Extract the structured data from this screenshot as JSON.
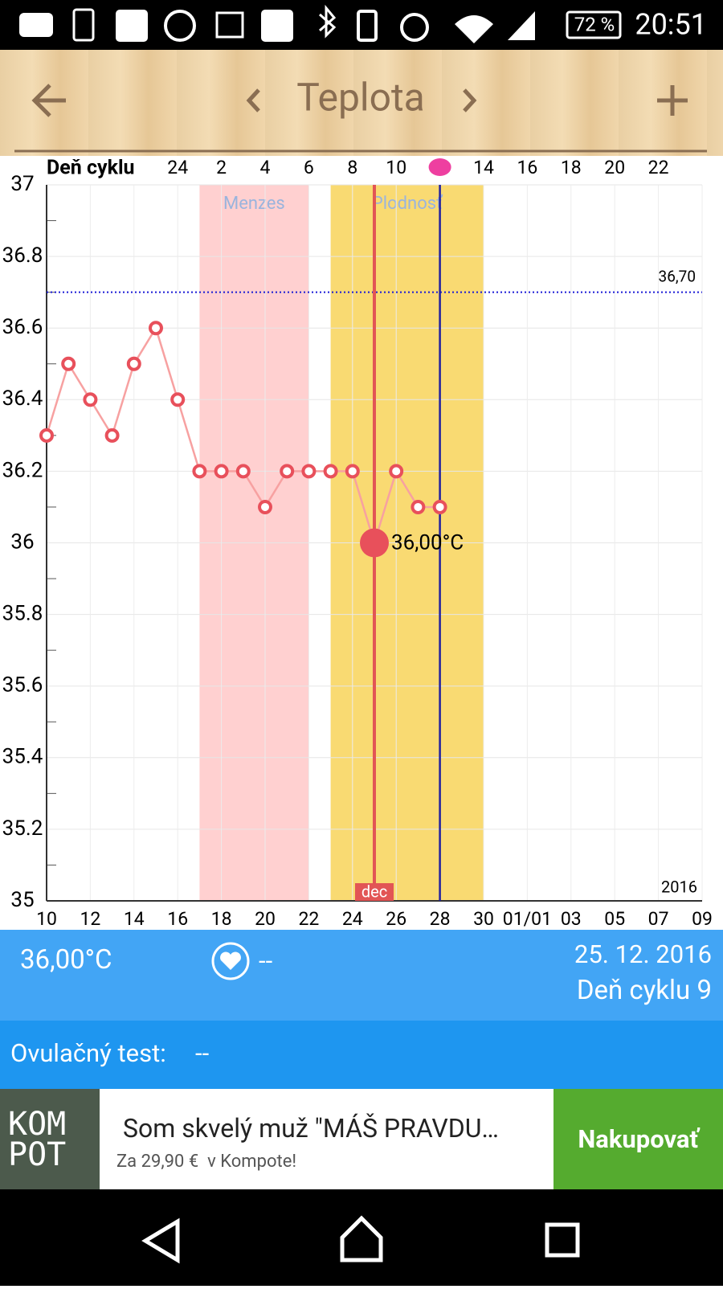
{
  "status_bar": {
    "battery": "72 %",
    "time": "20:51"
  },
  "header": {
    "title": "Teplota"
  },
  "chart_data": {
    "type": "line",
    "cycle_axis_label": "Deň cyklu",
    "cycle_days": [
      null,
      null,
      null,
      null,
      null,
      null,
      24,
      null,
      2,
      null,
      4,
      null,
      6,
      null,
      8,
      null,
      10,
      null,
      null,
      null,
      14,
      null,
      16,
      null,
      18,
      null,
      20,
      null,
      22,
      null,
      null
    ],
    "categories": [
      "10",
      null,
      "12",
      null,
      "14",
      null,
      "16",
      null,
      "18",
      null,
      "20",
      null,
      "22",
      null,
      "24",
      null,
      "26",
      null,
      "28",
      null,
      "30",
      null,
      "01/01",
      null,
      "03",
      null,
      "05",
      null,
      "07",
      null,
      "09"
    ],
    "series": [
      {
        "color": "#e8505b",
        "values": [
          36.3,
          36.5,
          36.4,
          36.3,
          36.5,
          36.6,
          36.4,
          36.2,
          36.2,
          36.2,
          36.1,
          36.2,
          36.2,
          36.2,
          36.2,
          36.0,
          36.2,
          36.1,
          36.1,
          null,
          null,
          null,
          null,
          null,
          null,
          null,
          null,
          null,
          null,
          null,
          null
        ]
      }
    ],
    "ylim": [
      35,
      37
    ],
    "yticks": [
      35,
      35.2,
      35.4,
      35.6,
      35.8,
      36,
      36.2,
      36.4,
      36.6,
      36.8,
      37
    ],
    "grid": true,
    "bands": [
      {
        "label": "Menzes",
        "color": "#ffd0d0"
      },
      {
        "label": "Plodnosť",
        "color": "#f9da72"
      }
    ],
    "reference_line": {
      "value": 36.7,
      "label": "36,70"
    },
    "annotation": "36,00°C",
    "month_label": "dec",
    "year_label": "2016"
  },
  "info": {
    "temperature": "36,00°C",
    "heart": "--",
    "date": "25. 12. 2016",
    "cycle_day": "Deň cyklu 9"
  },
  "ovulation_test": {
    "label": "Ovulačný test:",
    "value": "--"
  },
  "ad": {
    "logo": [
      "KOM",
      "POT"
    ],
    "headline": "Som skvelý muž \"MÁŠ PRAVDU…",
    "subline": "Za 29,90 €  v Kompote!",
    "button": "Nakupovať"
  }
}
